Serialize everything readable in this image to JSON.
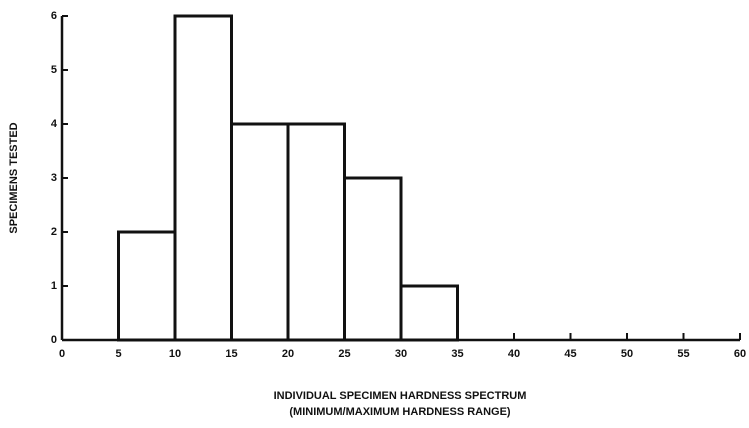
{
  "chart_data": {
    "type": "histogram",
    "ylabel": "SPECIMENS TESTED",
    "xlabel": [
      "INDIVIDUAL SPECIMEN HARDNESS SPECTRUM",
      "(MINIMUM/MAXIMUM HARDNESS RANGE)"
    ],
    "bins": [
      5,
      10,
      15,
      20,
      25,
      30,
      35
    ],
    "counts": [
      2,
      6,
      4,
      4,
      3,
      1
    ],
    "color": "#ffffff",
    "xlim": [
      0,
      60
    ],
    "xticks": [
      0,
      5,
      10,
      15,
      20,
      25,
      30,
      35,
      40,
      45,
      50,
      55,
      60
    ],
    "ylim": [
      0,
      6
    ],
    "yticks": [
      0,
      1,
      2,
      3,
      4,
      5,
      6
    ],
    "grid": false
  }
}
